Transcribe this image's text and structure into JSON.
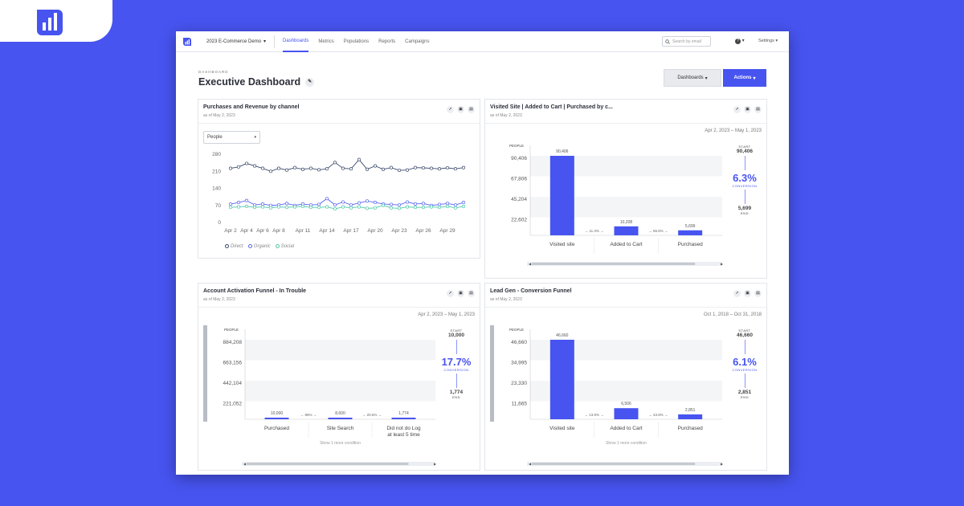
{
  "brand": {
    "logo": "bar-chart-logo-icon",
    "accent": "#4754f0",
    "background": "#4754f0"
  },
  "nav": {
    "project": "2023 E-Commerce Demo",
    "links": [
      "Dashboards",
      "Metrics",
      "Populations",
      "Reports",
      "Campaigns"
    ],
    "active": "Dashboards",
    "search_placeholder": "Search by email",
    "help": "?",
    "settings": "Settings"
  },
  "page": {
    "breadcrumb": "DASHBOARD",
    "title": "Executive Dashboard",
    "dashboards_button": "Dashboards",
    "actions_button": "Actions"
  },
  "cards": [
    {
      "title": "Purchases and Revenue by channel",
      "subtitle": "as of May 2, 2023",
      "select": "People",
      "chart_data": {
        "type": "line",
        "x": [
          "Apr 2",
          "Apr 3",
          "Apr 4",
          "Apr 5",
          "Apr 6",
          "Apr 7",
          "Apr 8",
          "Apr 9",
          "Apr 10",
          "Apr 11",
          "Apr 12",
          "Apr 13",
          "Apr 14",
          "Apr 15",
          "Apr 16",
          "Apr 17",
          "Apr 18",
          "Apr 19",
          "Apr 20",
          "Apr 21",
          "Apr 22",
          "Apr 23",
          "Apr 24",
          "Apr 25",
          "Apr 26",
          "Apr 27",
          "Apr 28",
          "Apr 29",
          "Apr 30",
          "May 1"
        ],
        "xticks": [
          "Apr 2",
          "Apr 4",
          "Apr 6",
          "Apr 8",
          "Apr 11",
          "Apr 14",
          "Apr 17",
          "Apr 20",
          "Apr 23",
          "Apr 26",
          "Apr 29"
        ],
        "yticks": [
          0,
          70,
          140,
          210,
          280
        ],
        "ylim": [
          0,
          280
        ],
        "series": [
          {
            "name": "Direct",
            "color": "#3b4a6b",
            "values": [
              222,
              228,
              242,
              232,
              222,
              210,
              222,
              215,
              225,
              218,
              222,
              216,
              220,
              246,
              222,
              220,
              258,
              218,
              232,
              218,
              225,
              214,
              215,
              225,
              224,
              222,
              220,
              224,
              220,
              225
            ]
          },
          {
            "name": "Organic",
            "color": "#5964f2",
            "values": [
              75,
              82,
              90,
              72,
              76,
              70,
              72,
              78,
              70,
              76,
              72,
              74,
              98,
              72,
              84,
              72,
              80,
              88,
              82,
              76,
              74,
              72,
              84,
              76,
              78,
              70,
              74,
              78,
              72,
              82
            ]
          },
          {
            "name": "Social",
            "color": "#4cc9a6",
            "values": [
              62,
              64,
              66,
              62,
              64,
              60,
              64,
              62,
              64,
              66,
              62,
              62,
              64,
              56,
              64,
              60,
              64,
              58,
              60,
              70,
              60,
              58,
              64,
              62,
              62,
              64,
              62,
              66,
              60,
              66
            ]
          }
        ]
      }
    },
    {
      "title": "Visited Site | Added to Cart | Purchased by c...",
      "subtitle": "as of May 2, 2023",
      "date_range": "Apr 2, 2023 – May 1, 2023",
      "chart_data": {
        "type": "bar",
        "ylabel": "PEOPLE",
        "yticks": [
          "90,406",
          "67,806",
          "45,204",
          "22,602"
        ],
        "ymax": 90406,
        "categories": [
          "Visited site",
          "Added to Cart",
          "Purchased"
        ],
        "values": [
          90406,
          10208,
          5699
        ],
        "value_labels": [
          "90,406",
          "10,208",
          "5,699"
        ],
        "step_rates": [
          "11.3%",
          "55.8%"
        ]
      },
      "stats": {
        "start_label": "START",
        "start": "90,406",
        "conversion": "6.3%",
        "conversion_label": "CONVERSION",
        "end": "5,699",
        "end_label": "END"
      }
    },
    {
      "title": "Account Activation Funnel - In Trouble",
      "subtitle": "as of May 2, 2023",
      "date_range": "Apr 2, 2023 – May 1, 2023",
      "chart_data": {
        "type": "bar",
        "ylabel": "PEOPLE",
        "yticks": [
          "884,208",
          "663,156",
          "442,104",
          "221,052"
        ],
        "ymax": 884208,
        "categories": [
          "Purchased",
          "Site Search",
          "Did not do Log at least 5 time"
        ],
        "category_lines": [
          [
            "Purchased"
          ],
          [
            "Site Search"
          ],
          [
            "Did not do Log",
            "at least 5 time"
          ]
        ],
        "values": [
          10000,
          8600,
          1774
        ],
        "value_labels": [
          "10,000",
          "8,600",
          "1,774"
        ],
        "step_rates": [
          "86%",
          "20.6%"
        ],
        "note": "Show 1 more condition"
      },
      "stats": {
        "start_label": "START",
        "start": "10,000",
        "conversion": "17.7%",
        "conversion_label": "CONVERSION",
        "end": "1,774",
        "end_label": "END"
      }
    },
    {
      "title": "Lead Gen - Conversion Funnel",
      "subtitle": "as of May 2, 2023",
      "date_range": "Oct 1, 2018 – Oct 31, 2018",
      "chart_data": {
        "type": "bar",
        "ylabel": "PEOPLE",
        "yticks": [
          "46,660",
          "34,995",
          "23,330",
          "11,665"
        ],
        "ymax": 46660,
        "categories": [
          "Visited site",
          "Added to Cart",
          "Purchased"
        ],
        "values": [
          46660,
          6506,
          2851
        ],
        "value_labels": [
          "46,660",
          "6,506",
          "2,851"
        ],
        "step_rates": [
          "13.9%",
          "43.8%"
        ],
        "note": "Show 1 more condition"
      },
      "stats": {
        "start_label": "START",
        "start": "46,660",
        "conversion": "6.1%",
        "conversion_label": "CONVERSION",
        "end": "2,851",
        "end_label": "END"
      }
    }
  ]
}
